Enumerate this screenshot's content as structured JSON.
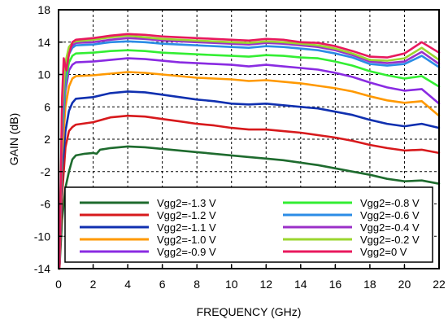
{
  "chart_data": {
    "type": "line",
    "title": "",
    "xlabel": "FREQUENCY (GHz)",
    "ylabel": "GAIN (dB)",
    "xlim": [
      0,
      22
    ],
    "ylim": [
      -14,
      18
    ],
    "xticks": [
      0,
      2,
      4,
      6,
      8,
      10,
      12,
      14,
      16,
      18,
      20,
      22
    ],
    "yticks": [
      -14,
      -10,
      -6,
      -2,
      2,
      6,
      10,
      14,
      18
    ],
    "grid": "dashed",
    "legend_position": "bottom",
    "series": [
      {
        "name": "Vgg2=-1.3 V",
        "color": "#1e6b2e",
        "points": [
          [
            0.05,
            -14
          ],
          [
            0.2,
            -8
          ],
          [
            0.4,
            -4
          ],
          [
            0.6,
            -2
          ],
          [
            0.8,
            -0.5
          ],
          [
            1.0,
            0.0
          ],
          [
            1.5,
            0.2
          ],
          [
            2.0,
            0.3
          ],
          [
            2.2,
            0.2
          ],
          [
            2.4,
            0.7
          ],
          [
            3,
            0.9
          ],
          [
            4,
            1.1
          ],
          [
            5,
            1.0
          ],
          [
            6,
            0.8
          ],
          [
            7,
            0.6
          ],
          [
            8,
            0.4
          ],
          [
            9,
            0.2
          ],
          [
            10,
            0.0
          ],
          [
            11,
            -0.2
          ],
          [
            12,
            -0.4
          ],
          [
            13,
            -0.6
          ],
          [
            14,
            -0.9
          ],
          [
            15,
            -1.2
          ],
          [
            16,
            -1.6
          ],
          [
            17,
            -2.0
          ],
          [
            18,
            -2.4
          ],
          [
            19,
            -2.9
          ],
          [
            20,
            -3.2
          ],
          [
            21,
            -3.1
          ],
          [
            21.5,
            -3.3
          ],
          [
            22,
            -3.5
          ]
        ]
      },
      {
        "name": "Vgg2=-1.2 V",
        "color": "#d7191c",
        "points": [
          [
            0.05,
            -14
          ],
          [
            0.2,
            -5
          ],
          [
            0.4,
            1
          ],
          [
            0.6,
            3
          ],
          [
            0.8,
            3.5
          ],
          [
            1.0,
            3.8
          ],
          [
            2,
            4.1
          ],
          [
            3,
            4.7
          ],
          [
            4,
            4.9
          ],
          [
            5,
            4.8
          ],
          [
            6,
            4.5
          ],
          [
            7,
            4.2
          ],
          [
            8,
            3.9
          ],
          [
            9,
            3.7
          ],
          [
            10,
            3.4
          ],
          [
            11,
            3.2
          ],
          [
            12,
            3.2
          ],
          [
            13,
            3.0
          ],
          [
            14,
            2.8
          ],
          [
            15,
            2.5
          ],
          [
            16,
            2.2
          ],
          [
            17,
            1.8
          ],
          [
            18,
            1.3
          ],
          [
            19,
            0.9
          ],
          [
            20,
            0.6
          ],
          [
            21,
            0.7
          ],
          [
            22,
            0.3
          ]
        ]
      },
      {
        "name": "Vgg2=-1.1 V",
        "color": "#1030b0",
        "points": [
          [
            0.05,
            -14
          ],
          [
            0.2,
            -2
          ],
          [
            0.4,
            3
          ],
          [
            0.6,
            5.5
          ],
          [
            0.8,
            6.5
          ],
          [
            1.0,
            7.0
          ],
          [
            2,
            7.2
          ],
          [
            3,
            7.7
          ],
          [
            4,
            7.9
          ],
          [
            5,
            7.8
          ],
          [
            6,
            7.5
          ],
          [
            7,
            7.2
          ],
          [
            8,
            6.9
          ],
          [
            9,
            6.7
          ],
          [
            10,
            6.4
          ],
          [
            11,
            6.3
          ],
          [
            12,
            6.4
          ],
          [
            13,
            6.2
          ],
          [
            14,
            6.0
          ],
          [
            15,
            5.8
          ],
          [
            16,
            5.4
          ],
          [
            17,
            5.0
          ],
          [
            18,
            4.4
          ],
          [
            19,
            3.9
          ],
          [
            20,
            3.6
          ],
          [
            21,
            3.9
          ],
          [
            22,
            3.4
          ]
        ]
      },
      {
        "name": "Vgg2=-1.0 V",
        "color": "#ff9900",
        "points": [
          [
            0.05,
            -14
          ],
          [
            0.2,
            0
          ],
          [
            0.4,
            6
          ],
          [
            0.6,
            8.5
          ],
          [
            0.8,
            9.5
          ],
          [
            1.0,
            9.8
          ],
          [
            2,
            9.9
          ],
          [
            3,
            10.1
          ],
          [
            4,
            10.3
          ],
          [
            5,
            10.2
          ],
          [
            6,
            10.0
          ],
          [
            7,
            9.8
          ],
          [
            8,
            9.6
          ],
          [
            9,
            9.5
          ],
          [
            10,
            9.4
          ],
          [
            11,
            9.2
          ],
          [
            12,
            9.3
          ],
          [
            13,
            9.1
          ],
          [
            14,
            8.9
          ],
          [
            15,
            8.6
          ],
          [
            16,
            8.3
          ],
          [
            17,
            7.9
          ],
          [
            18,
            7.3
          ],
          [
            19,
            6.8
          ],
          [
            20,
            6.5
          ],
          [
            21,
            6.7
          ],
          [
            22,
            4.9
          ]
        ]
      },
      {
        "name": "Vgg2=-0.9 V",
        "color": "#8a2be2",
        "points": [
          [
            0.05,
            -14
          ],
          [
            0.2,
            2
          ],
          [
            0.4,
            8
          ],
          [
            0.6,
            10.5
          ],
          [
            0.8,
            11.2
          ],
          [
            1.0,
            11.5
          ],
          [
            2,
            11.6
          ],
          [
            3,
            11.8
          ],
          [
            4,
            12.0
          ],
          [
            5,
            11.9
          ],
          [
            6,
            11.7
          ],
          [
            7,
            11.5
          ],
          [
            8,
            11.4
          ],
          [
            9,
            11.3
          ],
          [
            10,
            11.2
          ],
          [
            11,
            11.0
          ],
          [
            12,
            11.2
          ],
          [
            13,
            11.0
          ],
          [
            14,
            10.8
          ],
          [
            15,
            10.6
          ],
          [
            16,
            10.2
          ],
          [
            17,
            9.7
          ],
          [
            18,
            9.0
          ],
          [
            19,
            8.4
          ],
          [
            20,
            8.0
          ],
          [
            21,
            8.2
          ],
          [
            22,
            6.4
          ]
        ]
      },
      {
        "name": "Vgg2=-0.8 V",
        "color": "#33ee33",
        "points": [
          [
            0.05,
            -14
          ],
          [
            0.2,
            3
          ],
          [
            0.4,
            9
          ],
          [
            0.6,
            11.5
          ],
          [
            0.8,
            12.3
          ],
          [
            1.0,
            12.6
          ],
          [
            2,
            12.7
          ],
          [
            3,
            12.9
          ],
          [
            4,
            13.0
          ],
          [
            5,
            12.9
          ],
          [
            6,
            12.7
          ],
          [
            7,
            12.6
          ],
          [
            8,
            12.5
          ],
          [
            9,
            12.4
          ],
          [
            10,
            12.3
          ],
          [
            11,
            12.2
          ],
          [
            12,
            12.4
          ],
          [
            13,
            12.3
          ],
          [
            14,
            12.1
          ],
          [
            15,
            12.0
          ],
          [
            16,
            11.6
          ],
          [
            17,
            11.1
          ],
          [
            18,
            10.4
          ],
          [
            19,
            9.9
          ],
          [
            20,
            9.5
          ],
          [
            21,
            9.8
          ],
          [
            22,
            8.5
          ]
        ]
      },
      {
        "name": "Vgg2=-0.6 V",
        "color": "#2b8ce6",
        "points": [
          [
            0.05,
            -14
          ],
          [
            0.2,
            4
          ],
          [
            0.4,
            10
          ],
          [
            0.6,
            12.5
          ],
          [
            0.8,
            13.3
          ],
          [
            1.0,
            13.6
          ],
          [
            2,
            13.7
          ],
          [
            3,
            14.0
          ],
          [
            4,
            14.1
          ],
          [
            5,
            14.0
          ],
          [
            6,
            13.8
          ],
          [
            7,
            13.7
          ],
          [
            8,
            13.6
          ],
          [
            9,
            13.5
          ],
          [
            10,
            13.4
          ],
          [
            11,
            13.3
          ],
          [
            12,
            13.5
          ],
          [
            13,
            13.4
          ],
          [
            14,
            13.2
          ],
          [
            15,
            13.0
          ],
          [
            16,
            12.6
          ],
          [
            17,
            12.1
          ],
          [
            18,
            11.3
          ],
          [
            19,
            11.1
          ],
          [
            20,
            11.3
          ],
          [
            21,
            12.3
          ],
          [
            22,
            10.9
          ]
        ]
      },
      {
        "name": "Vgg2=-0.4 V",
        "color": "#9b30c8",
        "points": [
          [
            0.05,
            -14
          ],
          [
            0.2,
            5
          ],
          [
            0.4,
            11
          ],
          [
            0.6,
            13.0
          ],
          [
            0.8,
            13.6
          ],
          [
            1.0,
            13.9
          ],
          [
            2,
            14.0
          ],
          [
            3,
            14.3
          ],
          [
            4,
            14.5
          ],
          [
            5,
            14.4
          ],
          [
            6,
            14.2
          ],
          [
            7,
            14.1
          ],
          [
            8,
            14.0
          ],
          [
            9,
            13.9
          ],
          [
            10,
            13.8
          ],
          [
            11,
            13.7
          ],
          [
            12,
            13.9
          ],
          [
            13,
            13.8
          ],
          [
            14,
            13.6
          ],
          [
            15,
            13.4
          ],
          [
            16,
            13.0
          ],
          [
            17,
            12.4
          ],
          [
            18,
            11.6
          ],
          [
            19,
            11.4
          ],
          [
            20,
            11.6
          ],
          [
            21,
            12.8
          ],
          [
            22,
            11.3
          ]
        ]
      },
      {
        "name": "Vgg2=-0.2 V",
        "color": "#9bd62f",
        "points": [
          [
            0.05,
            -14
          ],
          [
            0.2,
            6
          ],
          [
            0.4,
            11.5
          ],
          [
            0.6,
            13.4
          ],
          [
            0.8,
            13.9
          ],
          [
            1.0,
            14.1
          ],
          [
            2,
            14.3
          ],
          [
            3,
            14.6
          ],
          [
            4,
            14.8
          ],
          [
            5,
            14.6
          ],
          [
            6,
            14.4
          ],
          [
            7,
            14.3
          ],
          [
            8,
            14.2
          ],
          [
            9,
            14.1
          ],
          [
            10,
            14.0
          ],
          [
            11,
            13.9
          ],
          [
            12,
            14.1
          ],
          [
            13,
            14.0
          ],
          [
            14,
            13.8
          ],
          [
            15,
            13.6
          ],
          [
            16,
            13.2
          ],
          [
            17,
            12.6
          ],
          [
            18,
            11.8
          ],
          [
            19,
            11.7
          ],
          [
            20,
            12.0
          ],
          [
            21,
            13.3
          ],
          [
            22,
            11.8
          ]
        ]
      },
      {
        "name": "Vgg2=0 V",
        "color": "#e8195e",
        "points": [
          [
            0.05,
            -14
          ],
          [
            0.2,
            7
          ],
          [
            0.3,
            12
          ],
          [
            0.45,
            10.5
          ],
          [
            0.6,
            12.5
          ],
          [
            0.8,
            14.0
          ],
          [
            1.0,
            14.3
          ],
          [
            2,
            14.5
          ],
          [
            3,
            14.8
          ],
          [
            4,
            15.0
          ],
          [
            5,
            14.9
          ],
          [
            6,
            14.7
          ],
          [
            7,
            14.6
          ],
          [
            8,
            14.5
          ],
          [
            9,
            14.4
          ],
          [
            10,
            14.3
          ],
          [
            11,
            14.2
          ],
          [
            12,
            14.4
          ],
          [
            13,
            14.3
          ],
          [
            14,
            14.0
          ],
          [
            15,
            13.9
          ],
          [
            16,
            13.5
          ],
          [
            17,
            12.9
          ],
          [
            18,
            12.2
          ],
          [
            19,
            12.1
          ],
          [
            20,
            12.6
          ],
          [
            21,
            14.0
          ],
          [
            22,
            12.7
          ]
        ]
      }
    ]
  }
}
